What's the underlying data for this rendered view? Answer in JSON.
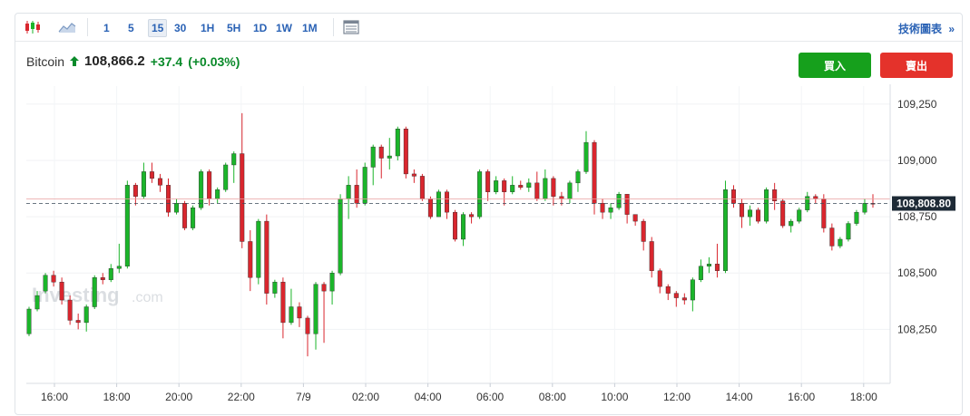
{
  "toolbar": {
    "intervals": [
      "1",
      "5",
      "15",
      "30",
      "1H",
      "5H",
      "1D",
      "1W",
      "1M"
    ],
    "active_interval": "15",
    "tech_chart_label": "技術圖表",
    "tech_chart_icon": "double-chevron-right-icon"
  },
  "quote": {
    "name": "Bitcoin",
    "direction_icon": "up-arrow-icon",
    "price": "108,866.2",
    "change": "+37.4",
    "change_pct": "(+0.03%)",
    "up_color": "#0a8a2a"
  },
  "buttons": {
    "buy": "買入",
    "sell": "賣出"
  },
  "watermark": {
    "brand": "Investing",
    "suffix": ".com"
  },
  "chart_data": {
    "type": "candlestick",
    "interval": "15",
    "y_ticks": [
      "109,250",
      "109,000",
      "108,750",
      "108,500",
      "108,250"
    ],
    "y_tick_values": [
      109250,
      109000,
      108750,
      108500,
      108250
    ],
    "ylim": [
      108010,
      109330
    ],
    "x_ticks": [
      "16:00",
      "18:00",
      "20:00",
      "22:00",
      "7/9",
      "02:00",
      "04:00",
      "06:00",
      "08:00",
      "10:00",
      "12:00",
      "14:00",
      "16:00",
      "18:00"
    ],
    "current_price_label": "108,808.80",
    "current_price": 108808.8,
    "reference_price": 108829,
    "up_color": "#1bb52a",
    "down_color": "#d9262e",
    "candles": [
      [
        108230,
        108340,
        108220,
        108350
      ],
      [
        108340,
        108400,
        108330,
        108420
      ],
      [
        108420,
        108490,
        108410,
        108500
      ],
      [
        108490,
        108460,
        108440,
        108510
      ],
      [
        108460,
        108380,
        108360,
        108480
      ],
      [
        108380,
        108290,
        108270,
        108400
      ],
      [
        108290,
        108280,
        108250,
        108320
      ],
      [
        108280,
        108350,
        108240,
        108360
      ],
      [
        108350,
        108480,
        108340,
        108490
      ],
      [
        108480,
        108470,
        108450,
        108500
      ],
      [
        108470,
        108520,
        108460,
        108540
      ],
      [
        108520,
        108530,
        108500,
        108630
      ],
      [
        108530,
        108890,
        108520,
        108910
      ],
      [
        108890,
        108840,
        108800,
        108900
      ],
      [
        108840,
        108950,
        108830,
        108990
      ],
      [
        108950,
        108920,
        108900,
        108990
      ],
      [
        108920,
        108890,
        108860,
        108940
      ],
      [
        108890,
        108770,
        108750,
        108920
      ],
      [
        108770,
        108810,
        108760,
        108830
      ],
      [
        108810,
        108700,
        108690,
        108820
      ],
      [
        108700,
        108790,
        108690,
        108800
      ],
      [
        108790,
        108950,
        108780,
        108960
      ],
      [
        108950,
        108830,
        108800,
        108960
      ],
      [
        108830,
        108870,
        108810,
        108880
      ],
      [
        108870,
        108980,
        108860,
        108990
      ],
      [
        108980,
        109030,
        108900,
        109040
      ],
      [
        109030,
        108640,
        108610,
        109210
      ],
      [
        108640,
        108480,
        108420,
        108690
      ],
      [
        108480,
        108730,
        108450,
        108740
      ],
      [
        108730,
        108410,
        108360,
        108760
      ],
      [
        108410,
        108460,
        108390,
        108470
      ],
      [
        108460,
        108280,
        108210,
        108480
      ],
      [
        108280,
        108350,
        108270,
        108430
      ],
      [
        108350,
        108300,
        108260,
        108370
      ],
      [
        108300,
        108230,
        108130,
        108310
      ],
      [
        108230,
        108450,
        108160,
        108460
      ],
      [
        108450,
        108420,
        108190,
        108460
      ],
      [
        108420,
        108500,
        108360,
        108510
      ],
      [
        108500,
        108830,
        108490,
        108850
      ],
      [
        108830,
        108890,
        108740,
        108930
      ],
      [
        108890,
        108810,
        108790,
        108960
      ],
      [
        108810,
        108970,
        108800,
        108990
      ],
      [
        108970,
        109060,
        108890,
        109070
      ],
      [
        109060,
        109010,
        108920,
        109070
      ],
      [
        109010,
        109020,
        108960,
        109100
      ],
      [
        109020,
        109140,
        109000,
        109150
      ],
      [
        109140,
        108940,
        108920,
        109150
      ],
      [
        108940,
        108930,
        108900,
        108960
      ],
      [
        108930,
        108830,
        108820,
        108940
      ],
      [
        108830,
        108750,
        108740,
        108840
      ],
      [
        108750,
        108860,
        108750,
        108870
      ],
      [
        108860,
        108770,
        108740,
        108870
      ],
      [
        108770,
        108650,
        108640,
        108780
      ],
      [
        108650,
        108760,
        108620,
        108770
      ],
      [
        108760,
        108750,
        108720,
        108770
      ],
      [
        108750,
        108950,
        108740,
        108960
      ],
      [
        108950,
        108860,
        108820,
        108960
      ],
      [
        108860,
        108910,
        108850,
        108930
      ],
      [
        108910,
        108860,
        108800,
        108920
      ],
      [
        108860,
        108890,
        108850,
        108930
      ],
      [
        108890,
        108880,
        108870,
        108910
      ],
      [
        108880,
        108900,
        108860,
        108920
      ],
      [
        108900,
        108830,
        108820,
        108950
      ],
      [
        108830,
        108920,
        108820,
        108960
      ],
      [
        108920,
        108840,
        108800,
        108930
      ],
      [
        108840,
        108830,
        108800,
        108860
      ],
      [
        108830,
        108900,
        108810,
        108910
      ],
      [
        108900,
        108950,
        108860,
        108960
      ],
      [
        108950,
        109080,
        108940,
        109130
      ],
      [
        109080,
        108810,
        108760,
        109090
      ],
      [
        108810,
        108770,
        108740,
        108830
      ],
      [
        108770,
        108790,
        108740,
        108810
      ],
      [
        108790,
        108850,
        108780,
        108860
      ],
      [
        108850,
        108760,
        108720,
        108850
      ],
      [
        108760,
        108730,
        108710,
        108760
      ],
      [
        108730,
        108640,
        108600,
        108740
      ],
      [
        108640,
        108510,
        108480,
        108660
      ],
      [
        108510,
        108440,
        108410,
        108520
      ],
      [
        108440,
        108410,
        108380,
        108450
      ],
      [
        108410,
        108390,
        108350,
        108420
      ],
      [
        108390,
        108380,
        108360,
        108410
      ],
      [
        108380,
        108470,
        108330,
        108480
      ],
      [
        108470,
        108530,
        108460,
        108560
      ],
      [
        108530,
        108540,
        108500,
        108570
      ],
      [
        108540,
        108510,
        108480,
        108630
      ],
      [
        108510,
        108870,
        108500,
        108910
      ],
      [
        108870,
        108810,
        108790,
        108890
      ],
      [
        108810,
        108750,
        108700,
        108830
      ],
      [
        108750,
        108780,
        108710,
        108800
      ],
      [
        108780,
        108730,
        108720,
        108790
      ],
      [
        108730,
        108870,
        108720,
        108880
      ],
      [
        108870,
        108820,
        108780,
        108900
      ],
      [
        108820,
        108710,
        108700,
        108830
      ],
      [
        108710,
        108730,
        108680,
        108740
      ],
      [
        108730,
        108780,
        108720,
        108790
      ],
      [
        108780,
        108840,
        108770,
        108860
      ],
      [
        108840,
        108830,
        108810,
        108850
      ],
      [
        108830,
        108700,
        108680,
        108850
      ],
      [
        108700,
        108620,
        108600,
        108720
      ],
      [
        108620,
        108650,
        108610,
        108660
      ],
      [
        108650,
        108720,
        108640,
        108730
      ],
      [
        108720,
        108770,
        108710,
        108780
      ],
      [
        108770,
        108810,
        108760,
        108830
      ],
      [
        108810,
        108809,
        108790,
        108850
      ]
    ]
  }
}
